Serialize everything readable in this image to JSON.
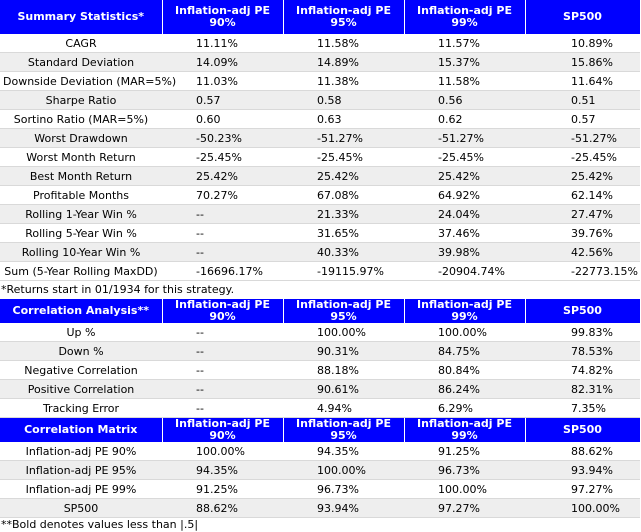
{
  "summary": {
    "headers": [
      "Summary Statistics*",
      "Inflation-adj PE 90%",
      "Inflation-adj PE 95%",
      "Inflation-adj PE 99%",
      "SP500"
    ],
    "rows": [
      [
        "CAGR",
        "11.11%",
        "11.58%",
        "11.57%",
        "10.89%"
      ],
      [
        "Standard Deviation",
        "14.09%",
        "14.89%",
        "15.37%",
        "15.86%"
      ],
      [
        "Downside Deviation (MAR=5%)",
        "11.03%",
        "11.38%",
        "11.58%",
        "11.64%"
      ],
      [
        "Sharpe Ratio",
        "0.57",
        "0.58",
        "0.56",
        "0.51"
      ],
      [
        "Sortino Ratio (MAR=5%)",
        "0.60",
        "0.63",
        "0.62",
        "0.57"
      ],
      [
        "Worst Drawdown",
        "-50.23%",
        "-51.27%",
        "-51.27%",
        "-51.27%"
      ],
      [
        "Worst Month Return",
        "-25.45%",
        "-25.45%",
        "-25.45%",
        "-25.45%"
      ],
      [
        "Best Month Return",
        "25.42%",
        "25.42%",
        "25.42%",
        "25.42%"
      ],
      [
        "Profitable Months",
        "70.27%",
        "67.08%",
        "64.92%",
        "62.14%"
      ],
      [
        "Rolling 1-Year Win %",
        "--",
        "21.33%",
        "24.04%",
        "27.47%"
      ],
      [
        "Rolling 5-Year Win %",
        "--",
        "31.65%",
        "37.46%",
        "39.76%"
      ],
      [
        "Rolling 10-Year Win %",
        "--",
        "40.33%",
        "39.98%",
        "42.56%"
      ],
      [
        "Sum (5-Year Rolling MaxDD)",
        "-16696.17%",
        "-19115.97%",
        "-20904.74%",
        "-22773.15%"
      ]
    ],
    "note": "*Returns start in 01/1934 for this strategy."
  },
  "correlation": {
    "headers": [
      "Correlation Analysis**",
      "Inflation-adj PE 90%",
      "Inflation-adj PE 95%",
      "Inflation-adj PE 99%",
      "SP500"
    ],
    "rows": [
      [
        "Up %",
        "--",
        "100.00%",
        "100.00%",
        "99.83%"
      ],
      [
        "Down %",
        "--",
        "90.31%",
        "84.75%",
        "78.53%"
      ],
      [
        "Negative Correlation",
        "--",
        "88.18%",
        "80.84%",
        "74.82%"
      ],
      [
        "Positive Correlation",
        "--",
        "90.61%",
        "86.24%",
        "82.31%"
      ],
      [
        "Tracking Error",
        "--",
        "4.94%",
        "6.29%",
        "7.35%"
      ]
    ]
  },
  "matrix": {
    "headers": [
      "Correlation Matrix",
      "Inflation-adj PE 90%",
      "Inflation-adj PE 95%",
      "Inflation-adj PE 99%",
      "SP500"
    ],
    "rows": [
      [
        "Inflation-adj PE 90%",
        "100.00%",
        "94.35%",
        "91.25%",
        "88.62%"
      ],
      [
        "Inflation-adj PE 95%",
        "94.35%",
        "100.00%",
        "96.73%",
        "93.94%"
      ],
      [
        "Inflation-adj PE 99%",
        "91.25%",
        "96.73%",
        "100.00%",
        "97.27%"
      ],
      [
        "SP500",
        "88.62%",
        "93.94%",
        "97.27%",
        "100.00%"
      ]
    ],
    "note": "**Bold denotes values less than |.5|"
  },
  "colors": {
    "header_bg": "#0000ff",
    "header_text": "#ffffff",
    "stripe": "#eeeeee"
  }
}
